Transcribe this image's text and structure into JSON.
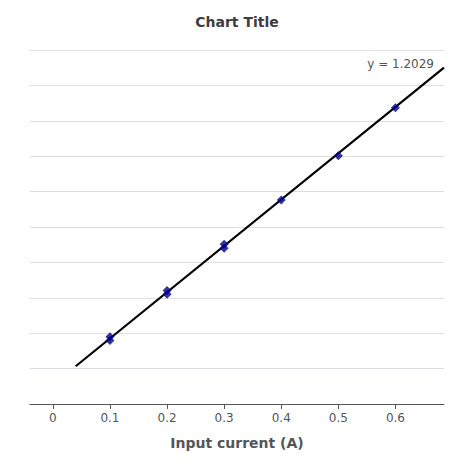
{
  "chart_data": {
    "type": "scatter",
    "title": "Chart Title",
    "xlabel": "Input current (A)",
    "annotation": "y = 1.2029",
    "series": [
      {
        "type": "line",
        "color": "#000000",
        "line_style": "solid",
        "x": [
          0.04,
          0.685
        ],
        "values": [
          0.048116,
          0.8239865
        ]
      },
      {
        "type": "scatter",
        "color": "#00008B",
        "marker": "diamond",
        "x": [
          0.1,
          0.1,
          0.2,
          0.2,
          0.3,
          0.3,
          0.4,
          0.5,
          0.6
        ],
        "values": [
          0.115,
          0.125,
          0.235,
          0.245,
          0.355,
          0.365,
          0.48,
          0.595,
          0.72
        ]
      }
    ],
    "xlim": [
      -0.04,
      0.685
    ],
    "xticks": [
      0,
      0.1,
      0.2,
      0.3,
      0.4,
      0.5,
      0.6
    ],
    "ylim": [
      -0.05,
      0.87
    ],
    "yticks": [
      -0.05,
      0.042,
      0.134,
      0.226,
      0.318,
      0.41,
      0.502,
      0.594,
      0.686,
      0.778,
      0.87
    ],
    "grid": true,
    "tick_labels": "x"
  }
}
